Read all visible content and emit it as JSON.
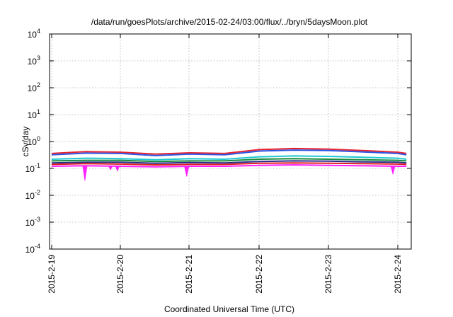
{
  "chart_data": {
    "type": "line",
    "title": "/data/run/goesPlots/archive/2015-02-24/03:00/flux/../bryn/5daysMoon.plot",
    "xlabel": "Coordinated Universal Time (UTC)",
    "ylabel": "cSv/day",
    "y_scale": "log",
    "ylim": [
      0.0001,
      10000
    ],
    "xlim": [
      "2015-02-19 00:00",
      "2015-02-24 03:00"
    ],
    "y_ticks": [
      {
        "base": "10",
        "exp": "4",
        "value": 10000
      },
      {
        "base": "10",
        "exp": "3",
        "value": 1000
      },
      {
        "base": "10",
        "exp": "2",
        "value": 100
      },
      {
        "base": "10",
        "exp": "1",
        "value": 10
      },
      {
        "base": "10",
        "exp": "0",
        "value": 1
      },
      {
        "base": "10",
        "exp": "-1",
        "value": 0.1
      },
      {
        "base": "10",
        "exp": "-2",
        "value": 0.01
      },
      {
        "base": "10",
        "exp": "-3",
        "value": 0.001
      },
      {
        "base": "10",
        "exp": "-4",
        "value": 0.0001
      }
    ],
    "x_ticks": [
      "2015-2-19",
      "2015-2-20",
      "2015-2-21",
      "2015-2-22",
      "2015-2-23",
      "2015-2-24"
    ],
    "grid": true,
    "series": [
      {
        "color": "#e8252f",
        "x": [
          0,
          0.5,
          1,
          1.5,
          2,
          2.5,
          3,
          3.5,
          4,
          4.5,
          5,
          5.125
        ],
        "values": [
          0.36,
          0.42,
          0.4,
          0.34,
          0.38,
          0.36,
          0.5,
          0.55,
          0.52,
          0.46,
          0.4,
          0.36
        ]
      },
      {
        "color": "#2c55e6",
        "x": [
          0,
          0.5,
          1,
          1.5,
          2,
          2.5,
          3,
          3.5,
          4,
          4.5,
          5,
          5.125
        ],
        "values": [
          0.32,
          0.37,
          0.36,
          0.3,
          0.34,
          0.32,
          0.44,
          0.48,
          0.46,
          0.41,
          0.36,
          0.32
        ]
      },
      {
        "color": "#1ec8d2",
        "x": [
          0,
          0.5,
          1,
          1.5,
          2,
          2.5,
          3,
          3.5,
          4,
          4.5,
          5,
          5.125
        ],
        "values": [
          0.22,
          0.24,
          0.23,
          0.21,
          0.23,
          0.22,
          0.27,
          0.29,
          0.28,
          0.26,
          0.24,
          0.22
        ]
      },
      {
        "color": "#1a8a3a",
        "x": [
          0,
          0.5,
          1,
          1.5,
          2,
          2.5,
          3,
          3.5,
          4,
          4.5,
          5,
          5.125
        ],
        "values": [
          0.19,
          0.2,
          0.2,
          0.18,
          0.19,
          0.19,
          0.22,
          0.23,
          0.22,
          0.21,
          0.2,
          0.19
        ]
      },
      {
        "color": "#2a2a8a",
        "x": [
          0,
          0.5,
          1,
          1.5,
          2,
          2.5,
          3,
          3.5,
          4,
          4.5,
          5,
          5.125
        ],
        "values": [
          0.16,
          0.17,
          0.17,
          0.155,
          0.165,
          0.16,
          0.18,
          0.19,
          0.185,
          0.175,
          0.17,
          0.16
        ]
      },
      {
        "color": "#e02020",
        "x": [
          0,
          0.5,
          1,
          1.5,
          2,
          2.5,
          3,
          3.5,
          4,
          4.5,
          5,
          5.125
        ],
        "values": [
          0.14,
          0.15,
          0.145,
          0.135,
          0.14,
          0.14,
          0.155,
          0.16,
          0.155,
          0.15,
          0.145,
          0.14
        ]
      },
      {
        "color": "#ff22ff",
        "x": [
          0,
          0.5,
          1,
          1.5,
          2,
          2.5,
          3,
          3.5,
          4,
          4.5,
          5,
          5.125
        ],
        "values": [
          0.12,
          0.125,
          0.12,
          0.115,
          0.12,
          0.12,
          0.13,
          0.135,
          0.13,
          0.125,
          0.12,
          0.12
        ]
      }
    ],
    "spikes": [
      {
        "color": "#ff22ff",
        "x": 0.48,
        "value": 0.035
      },
      {
        "color": "#ff22ff",
        "x": 0.95,
        "value": 0.08
      },
      {
        "color": "#ff22ff",
        "x": 1.95,
        "value": 0.05
      },
      {
        "color": "#ff22ff",
        "x": 4.93,
        "value": 0.06
      },
      {
        "color": "#ff22ff",
        "x": 0.85,
        "value": 0.09
      }
    ]
  }
}
